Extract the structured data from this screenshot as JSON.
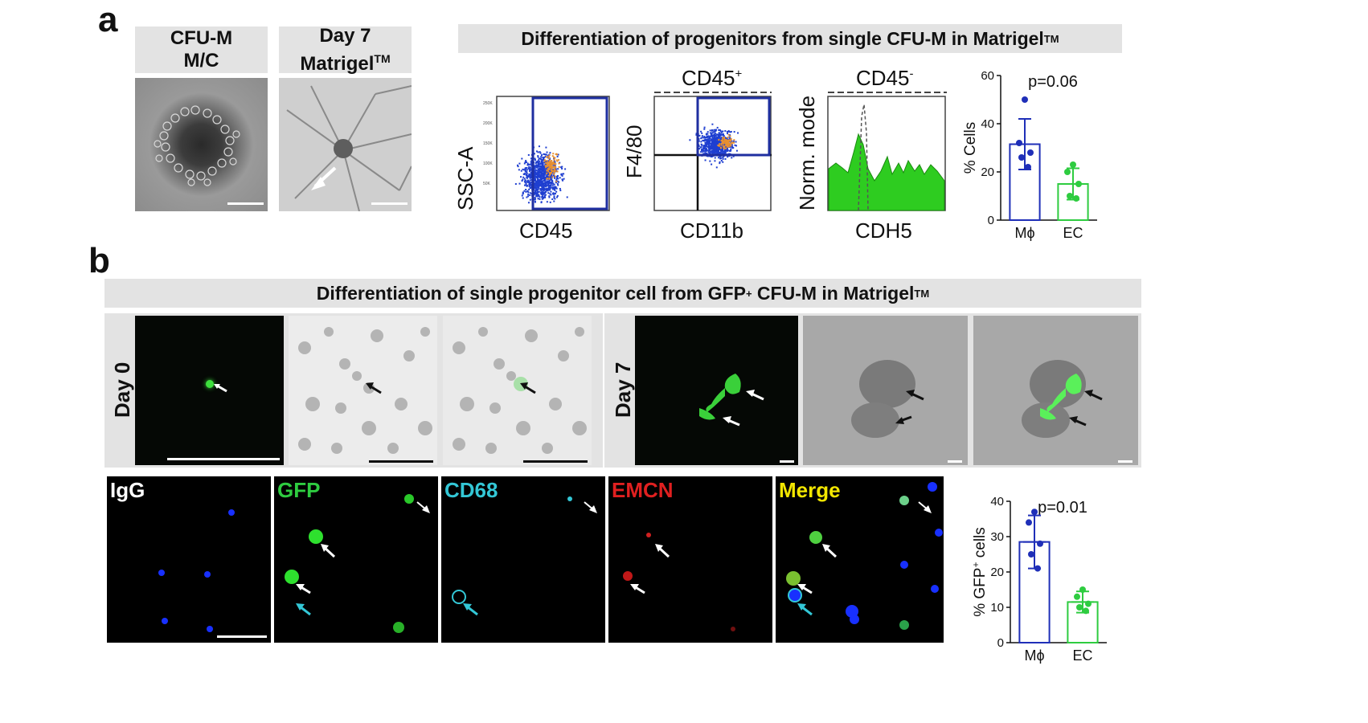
{
  "panel_a": {
    "letter": "a",
    "micro_headers": [
      {
        "line1": "CFU-M",
        "line2": "M/C",
        "sup": ""
      },
      {
        "line1": "Day 7",
        "line2": "Matrigel",
        "sup": "TM"
      }
    ],
    "flow_header": {
      "text": "Differentiation of progenitors from single CFU-M in Matrigel",
      "sup": "TM"
    },
    "flow_plots": [
      {
        "xlabel": "CD45",
        "ylabel": "SSC-A",
        "title": "",
        "title_sup": ""
      },
      {
        "xlabel": "CD11b",
        "ylabel": "F4/80",
        "title": "CD45",
        "title_sup": "+"
      },
      {
        "xlabel": "CDH5",
        "ylabel": "Norm. mode",
        "title": "CD45",
        "title_sup": "-"
      }
    ],
    "gate_color": "#1f2fa0"
  },
  "panel_b": {
    "letter": "b",
    "header": {
      "text_pre": "Differentiation of single progenitor cell from GFP",
      "sup": "+",
      "text_post": " CFU-M in Matrigel",
      "sup2": "TM"
    },
    "day_labels": [
      "Day 0",
      "Day 7"
    ],
    "channels": [
      {
        "label": "IgG",
        "color": "#ffffff"
      },
      {
        "label": "GFP",
        "color": "#2ecc40"
      },
      {
        "label": "CD68",
        "color": "#33c7d6"
      },
      {
        "label": "EMCN",
        "color": "#e02020"
      },
      {
        "label": "Merge",
        "color": "#f2e600"
      }
    ]
  },
  "chart_data": [
    {
      "type": "bar",
      "title": "p=0.06",
      "ylabel": "% Cells",
      "xlabel": "",
      "categories": [
        "Mϕ",
        "EC"
      ],
      "values": [
        31.5,
        15
      ],
      "error": [
        10.5,
        6.5
      ],
      "points": [
        [
          50,
          32,
          28,
          26,
          22
        ],
        [
          23,
          20,
          15,
          10,
          9
        ]
      ],
      "ylim": [
        0,
        60
      ],
      "yticks": [
        0,
        20,
        40,
        60
      ],
      "colors": [
        "#1f2fb8",
        "#2ecc40"
      ]
    },
    {
      "type": "bar",
      "title": "p=0.01",
      "ylabel": "% GFP+ cells",
      "ylabel_parts": {
        "pre": "% GFP",
        "sup": "+",
        "post": " cells"
      },
      "xlabel": "",
      "categories": [
        "Mϕ",
        "EC"
      ],
      "values": [
        28.5,
        11.5
      ],
      "error": [
        7.5,
        3
      ],
      "points": [
        [
          37,
          34,
          28,
          25,
          21
        ],
        [
          15,
          13,
          11,
          10,
          9
        ]
      ],
      "ylim": [
        0,
        40
      ],
      "yticks": [
        0,
        10,
        20,
        30,
        40
      ],
      "colors": [
        "#1f2fb8",
        "#2ecc40"
      ]
    }
  ]
}
